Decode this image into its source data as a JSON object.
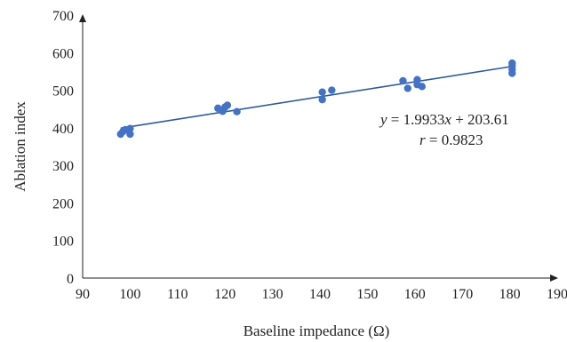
{
  "chart_data": {
    "type": "scatter",
    "xlabel": "Baseline impedance (Ω)",
    "ylabel": "Ablation index",
    "xlim": [
      90,
      190
    ],
    "ylim": [
      0,
      700
    ],
    "x_ticks": [
      90,
      100,
      110,
      120,
      130,
      140,
      150,
      160,
      170,
      180,
      190
    ],
    "y_ticks": [
      0,
      100,
      200,
      300,
      400,
      500,
      600,
      700
    ],
    "grid": false,
    "marker_color": "#4472C4",
    "line_color": "#2E5C9A",
    "points": [
      {
        "x": 98,
        "y": 383
      },
      {
        "x": 98.5,
        "y": 390
      },
      {
        "x": 99,
        "y": 395
      },
      {
        "x": 100,
        "y": 398
      },
      {
        "x": 100,
        "y": 383
      },
      {
        "x": 118.5,
        "y": 452
      },
      {
        "x": 119.5,
        "y": 444
      },
      {
        "x": 120,
        "y": 455
      },
      {
        "x": 120.5,
        "y": 460
      },
      {
        "x": 122.5,
        "y": 443
      },
      {
        "x": 140.5,
        "y": 495
      },
      {
        "x": 140.5,
        "y": 475
      },
      {
        "x": 142.5,
        "y": 500
      },
      {
        "x": 157.5,
        "y": 525
      },
      {
        "x": 158.5,
        "y": 505
      },
      {
        "x": 160.5,
        "y": 528
      },
      {
        "x": 160.5,
        "y": 515
      },
      {
        "x": 161.5,
        "y": 510
      },
      {
        "x": 180.5,
        "y": 572
      },
      {
        "x": 180.5,
        "y": 565
      },
      {
        "x": 180.5,
        "y": 555
      },
      {
        "x": 180.5,
        "y": 545
      }
    ],
    "trendline": {
      "slope": 1.9933,
      "intercept": 203.61,
      "x_range": [
        98,
        180.5
      ],
      "equation_prefix": "y",
      "equation_rest": " = 1.9933",
      "equation_var": "x",
      "equation_suffix": " + 203.61",
      "r_prefix": "r",
      "r_rest": " = 0.9823"
    }
  }
}
